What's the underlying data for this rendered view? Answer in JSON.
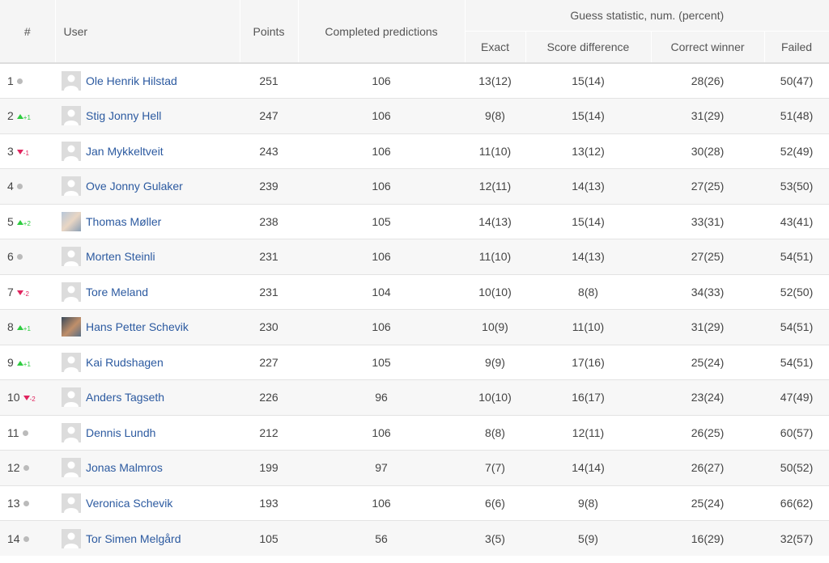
{
  "headers": {
    "rank": "#",
    "user": "User",
    "points": "Points",
    "completed": "Completed predictions",
    "guess_group": "Guess statistic, num. (percent)",
    "exact": "Exact",
    "score_difference": "Score difference",
    "correct_winner": "Correct winner",
    "failed": "Failed"
  },
  "colors": {
    "up": "#2ecc40",
    "down": "#e0245e",
    "link": "#2c5aa0",
    "neutral": "#bbbbbb"
  },
  "rows": [
    {
      "rank": "1",
      "trend": "same",
      "change": "",
      "avatar": "default",
      "user": "Ole Henrik Hilstad",
      "points": "251",
      "completed": "106",
      "exact": "13(12)",
      "score_difference": "15(14)",
      "correct_winner": "28(26)",
      "failed": "50(47)"
    },
    {
      "rank": "2",
      "trend": "up",
      "change": "+1",
      "avatar": "default",
      "user": "Stig Jonny Hell",
      "points": "247",
      "completed": "106",
      "exact": "9(8)",
      "score_difference": "15(14)",
      "correct_winner": "31(29)",
      "failed": "51(48)"
    },
    {
      "rank": "3",
      "trend": "down",
      "change": "-1",
      "avatar": "default",
      "user": "Jan Mykkeltveit",
      "points": "243",
      "completed": "106",
      "exact": "11(10)",
      "score_difference": "13(12)",
      "correct_winner": "30(28)",
      "failed": "52(49)"
    },
    {
      "rank": "4",
      "trend": "same",
      "change": "",
      "avatar": "default",
      "user": "Ove Jonny Gulaker",
      "points": "239",
      "completed": "106",
      "exact": "12(11)",
      "score_difference": "14(13)",
      "correct_winner": "27(25)",
      "failed": "53(50)"
    },
    {
      "rank": "5",
      "trend": "up",
      "change": "+2",
      "avatar": "photo1",
      "user": "Thomas Møller",
      "points": "238",
      "completed": "105",
      "exact": "14(13)",
      "score_difference": "15(14)",
      "correct_winner": "33(31)",
      "failed": "43(41)"
    },
    {
      "rank": "6",
      "trend": "same",
      "change": "",
      "avatar": "default",
      "user": "Morten Steinli",
      "points": "231",
      "completed": "106",
      "exact": "11(10)",
      "score_difference": "14(13)",
      "correct_winner": "27(25)",
      "failed": "54(51)"
    },
    {
      "rank": "7",
      "trend": "down",
      "change": "-2",
      "avatar": "default",
      "user": "Tore Meland",
      "points": "231",
      "completed": "104",
      "exact": "10(10)",
      "score_difference": "8(8)",
      "correct_winner": "34(33)",
      "failed": "52(50)"
    },
    {
      "rank": "8",
      "trend": "up",
      "change": "+1",
      "avatar": "photo2",
      "user": "Hans Petter Schevik",
      "points": "230",
      "completed": "106",
      "exact": "10(9)",
      "score_difference": "11(10)",
      "correct_winner": "31(29)",
      "failed": "54(51)"
    },
    {
      "rank": "9",
      "trend": "up",
      "change": "+1",
      "avatar": "default",
      "user": "Kai Rudshagen",
      "points": "227",
      "completed": "105",
      "exact": "9(9)",
      "score_difference": "17(16)",
      "correct_winner": "25(24)",
      "failed": "54(51)"
    },
    {
      "rank": "10",
      "trend": "down",
      "change": "-2",
      "avatar": "default",
      "user": "Anders Tagseth",
      "points": "226",
      "completed": "96",
      "exact": "10(10)",
      "score_difference": "16(17)",
      "correct_winner": "23(24)",
      "failed": "47(49)"
    },
    {
      "rank": "11",
      "trend": "same",
      "change": "",
      "avatar": "default",
      "user": "Dennis Lundh",
      "points": "212",
      "completed": "106",
      "exact": "8(8)",
      "score_difference": "12(11)",
      "correct_winner": "26(25)",
      "failed": "60(57)"
    },
    {
      "rank": "12",
      "trend": "same",
      "change": "",
      "avatar": "default",
      "user": "Jonas Malmros",
      "points": "199",
      "completed": "97",
      "exact": "7(7)",
      "score_difference": "14(14)",
      "correct_winner": "26(27)",
      "failed": "50(52)"
    },
    {
      "rank": "13",
      "trend": "same",
      "change": "",
      "avatar": "default",
      "user": "Veronica Schevik",
      "points": "193",
      "completed": "106",
      "exact": "6(6)",
      "score_difference": "9(8)",
      "correct_winner": "25(24)",
      "failed": "66(62)"
    },
    {
      "rank": "14",
      "trend": "same",
      "change": "",
      "avatar": "default",
      "user": "Tor Simen Melgård",
      "points": "105",
      "completed": "56",
      "exact": "3(5)",
      "score_difference": "5(9)",
      "correct_winner": "16(29)",
      "failed": "32(57)"
    }
  ]
}
